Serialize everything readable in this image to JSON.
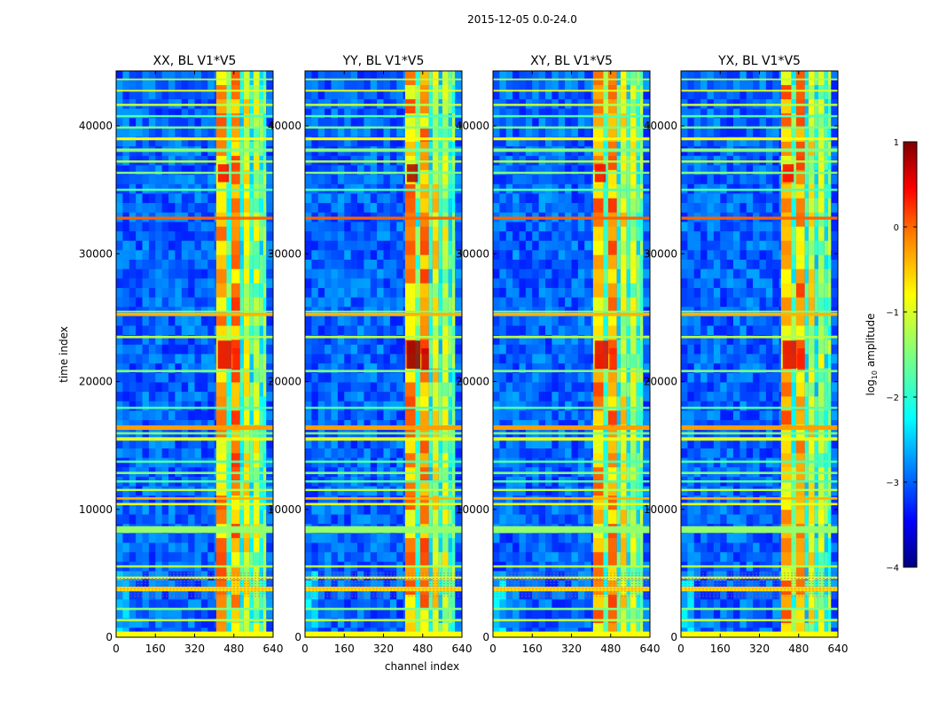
{
  "figure": {
    "suptitle": "2015-12-05 0.0-24.0"
  },
  "chart_data": [
    {
      "type": "heatmap",
      "title": "XX, BL V1*V5",
      "xlabel": "",
      "ylabel": "time index",
      "xlim": [
        0,
        640
      ],
      "ylim": [
        0,
        44300
      ],
      "xticks": [
        "0",
        "160",
        "320",
        "480",
        "640"
      ],
      "yticks": [
        "0",
        "10000",
        "20000",
        "30000",
        "40000"
      ],
      "yticks_values": [
        0,
        10000,
        20000,
        30000,
        40000
      ]
    },
    {
      "type": "heatmap",
      "title": "YY, BL V1*V5",
      "xlabel": "channel index",
      "ylabel": "",
      "xlim": [
        0,
        640
      ],
      "ylim": [
        0,
        44300
      ],
      "xticks": [
        "0",
        "160",
        "320",
        "480",
        "640"
      ],
      "yticks": [
        "0",
        "10000",
        "20000",
        "30000",
        "40000"
      ],
      "yticks_values": [
        0,
        10000,
        20000,
        30000,
        40000
      ]
    },
    {
      "type": "heatmap",
      "title": "XY, BL V1*V5",
      "xlabel": "",
      "ylabel": "",
      "xlim": [
        0,
        640
      ],
      "ylim": [
        0,
        44300
      ],
      "xticks": [
        "0",
        "160",
        "320",
        "480",
        "640"
      ],
      "yticks": [
        "0",
        "10000",
        "20000",
        "30000",
        "40000"
      ],
      "yticks_values": [
        0,
        10000,
        20000,
        30000,
        40000
      ]
    },
    {
      "type": "heatmap",
      "title": "YX, BL V1*V5",
      "xlabel": "",
      "ylabel": "",
      "xlim": [
        0,
        640
      ],
      "ylim": [
        0,
        44300
      ],
      "xticks": [
        "0",
        "160",
        "320",
        "480",
        "640"
      ],
      "yticks": [
        "0",
        "10000",
        "20000",
        "30000",
        "40000"
      ],
      "yticks_values": [
        0,
        10000,
        20000,
        30000,
        40000
      ]
    }
  ],
  "colorbar": {
    "label": "log10 amplitude",
    "label_prefix": "log",
    "label_sub": "10",
    "label_suffix": " amplitude",
    "range": [
      -4,
      1
    ],
    "ticks": [
      "1",
      "0",
      "−1",
      "−2",
      "−3",
      "−4"
    ],
    "tick_values": [
      1,
      0,
      -1,
      -2,
      -3,
      -4
    ],
    "colormap": "jet",
    "colors": [
      "#00007f",
      "#0000ff",
      "#007fff",
      "#00ffff",
      "#7fff7f",
      "#ffff00",
      "#ff7f00",
      "#ff0000",
      "#7f0000"
    ]
  }
}
